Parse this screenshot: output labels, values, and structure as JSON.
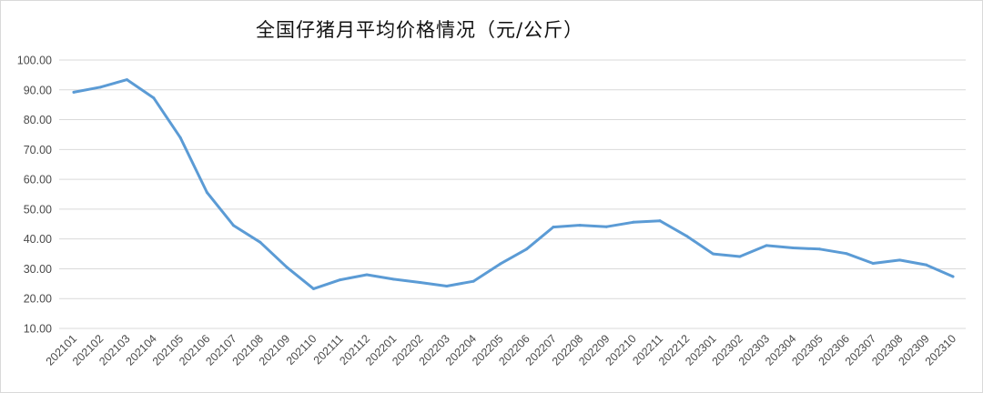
{
  "chart_data": {
    "type": "line",
    "title": "全国仔猪月平均价格情况（元/公斤）",
    "xlabel": "",
    "ylabel": "",
    "ylim": [
      10,
      100
    ],
    "yticks": [
      "10.00",
      "20.00",
      "30.00",
      "40.00",
      "50.00",
      "60.00",
      "70.00",
      "80.00",
      "90.00",
      "100.00"
    ],
    "grid": true,
    "categories": [
      "202101",
      "202102",
      "202103",
      "202104",
      "202105",
      "202106",
      "202107",
      "202108",
      "202109",
      "202110",
      "202111",
      "202112",
      "202201",
      "202202",
      "202203",
      "202204",
      "202205",
      "202206",
      "202207",
      "202208",
      "202209",
      "202210",
      "202211",
      "202212",
      "202301",
      "202302",
      "202303",
      "202304",
      "202305",
      "202306",
      "202307",
      "202308",
      "202309",
      "202310"
    ],
    "series": [
      {
        "values": [
          89.2,
          90.9,
          93.4,
          87.3,
          74.0,
          55.6,
          44.5,
          38.9,
          30.5,
          23.3,
          26.3,
          28.0,
          26.5,
          25.4,
          24.2,
          25.8,
          31.6,
          36.6,
          44.0,
          44.6,
          44.1,
          45.6,
          46.1,
          41.0,
          35.0,
          34.1,
          37.8,
          37.0,
          36.6,
          35.1,
          31.8,
          32.9,
          31.3,
          27.4
        ],
        "color": "#5b9bd5"
      }
    ]
  }
}
